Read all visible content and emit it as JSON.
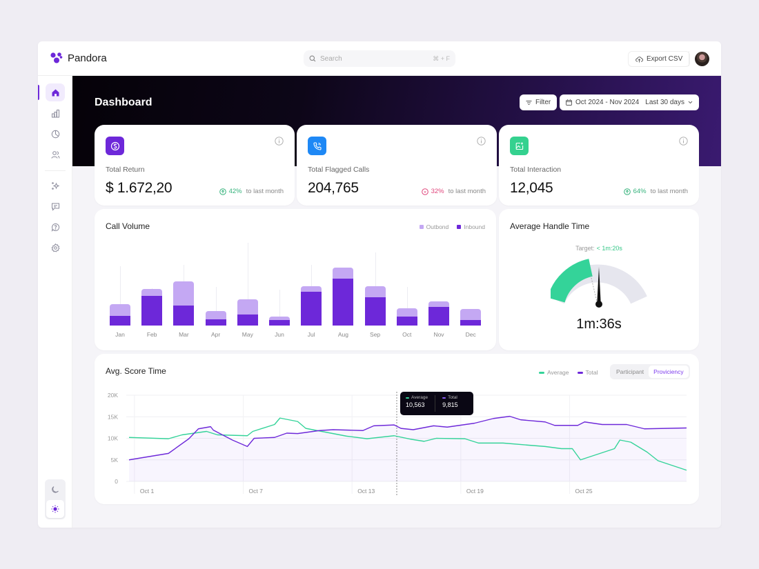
{
  "app": {
    "name": "Pandora"
  },
  "topbar": {
    "search_placeholder": "Search",
    "search_shortcut": "⌘ + F",
    "export_label": "Export CSV"
  },
  "sidebar": {
    "items": [
      {
        "id": "home",
        "icon": "home-icon",
        "active": true
      },
      {
        "id": "analytics",
        "icon": "bar-chart-icon"
      },
      {
        "id": "reports",
        "icon": "pie-chart-icon"
      },
      {
        "id": "users",
        "icon": "users-icon"
      },
      {
        "id": "ai",
        "icon": "sparkles-icon"
      },
      {
        "id": "messages",
        "icon": "message-icon"
      },
      {
        "id": "help",
        "icon": "help-chat-icon"
      },
      {
        "id": "settings",
        "icon": "gear-icon"
      }
    ],
    "theme": {
      "dark_icon": "moon-icon",
      "light_icon": "sun-icon",
      "selected": "light"
    }
  },
  "header": {
    "title": "Dashboard",
    "filter_label": "Filter",
    "date_range": "Oct 2024 - Nov 2024",
    "period": "Last 30 days"
  },
  "stats": [
    {
      "label": "Total Return",
      "value": "$ 1.672,20",
      "change": "42%",
      "direction": "up",
      "suffix": "to last month",
      "icon": "dollar-icon",
      "icon_color": "#6d28d9",
      "change_color": "#34b27b"
    },
    {
      "label": "Total Flagged Calls",
      "value": "204,765",
      "change": "32%",
      "direction": "down",
      "suffix": "to last month",
      "icon": "phone-icon",
      "icon_color": "#1e88f5",
      "change_color": "#e0457b"
    },
    {
      "label": "Total Interaction",
      "value": "12,045",
      "change": "64%",
      "direction": "up",
      "suffix": "to last month",
      "icon": "image-sparkle-icon",
      "icon_color": "#34d18f",
      "change_color": "#34b27b"
    }
  ],
  "call_volume": {
    "title": "Call Volume",
    "legend": [
      {
        "name": "Outbond",
        "color": "#c4a8f3"
      },
      {
        "name": "Inbound",
        "color": "#6d28d9"
      }
    ]
  },
  "handle_time": {
    "title": "Average Handle Time",
    "target_label": "Target:",
    "target_value": "< 1m:20s",
    "value": "1m:36s"
  },
  "score_time": {
    "title": "Avg. Score Time",
    "legend": [
      {
        "name": "Average",
        "color": "#34d399"
      },
      {
        "name": "Total",
        "color": "#6d28d9"
      }
    ],
    "toggle": [
      {
        "label": "Participant",
        "selected": false
      },
      {
        "label": "Proviciency",
        "selected": true
      }
    ],
    "tooltip": {
      "average_label": "Average",
      "average_value": "10,563",
      "total_label": "Total",
      "total_value": "9,815"
    }
  },
  "chart_data": [
    {
      "type": "bar",
      "title": "Call Volume",
      "stacked": true,
      "categories": [
        "Jan",
        "Feb",
        "Mar",
        "Apr",
        "May",
        "Jun",
        "Jul",
        "Aug",
        "Sep",
        "Oct",
        "Nov",
        "Dec"
      ],
      "series": [
        {
          "name": "Inbound",
          "values": [
            14,
            43,
            29,
            9,
            16,
            8,
            49,
            68,
            41,
            13,
            27,
            8
          ]
        },
        {
          "name": "Outbond",
          "values": [
            17,
            10,
            35,
            12,
            22,
            5,
            8,
            16,
            16,
            12,
            8,
            16
          ]
        }
      ],
      "whiskers": [
        86,
        54,
        88,
        56,
        120,
        52,
        88,
        0,
        106,
        56,
        0,
        0
      ],
      "xlabel": "",
      "ylabel": "",
      "grid": false,
      "legend_position": "top-right"
    },
    {
      "type": "gauge",
      "title": "Average Handle Time",
      "value": "1m:36s",
      "target": "< 1m:20s",
      "fill_fraction": 0.42
    },
    {
      "type": "line",
      "title": "Avg. Score Time",
      "x_ticks": [
        "Oct 1",
        "Oct 7",
        "Oct 13",
        "Oct 19",
        "Oct 25"
      ],
      "y_ticks": [
        "0",
        "5K",
        "10K",
        "15K",
        "20K"
      ],
      "ylim": [
        0,
        20000
      ],
      "grid": true,
      "legend_position": "top-right",
      "series": [
        {
          "name": "Average",
          "points": [
            [
              0,
              10200
            ],
            [
              2.9,
              9900
            ],
            [
              3.9,
              10800
            ],
            [
              5.7,
              11600
            ],
            [
              6.5,
              10800
            ],
            [
              8.7,
              10600
            ],
            [
              9.1,
              11600
            ],
            [
              10.7,
              13200
            ],
            [
              11.1,
              14700
            ],
            [
              12.4,
              13900
            ],
            [
              13.0,
              12300
            ],
            [
              14.0,
              11700
            ],
            [
              16.0,
              10500
            ],
            [
              17.5,
              9900
            ],
            [
              19.5,
              10600
            ],
            [
              20.7,
              9800
            ],
            [
              21.7,
              9300
            ],
            [
              22.6,
              10000
            ],
            [
              24.7,
              9900
            ],
            [
              25.7,
              8900
            ],
            [
              27.5,
              8900
            ],
            [
              29.4,
              8400
            ],
            [
              30.6,
              8100
            ],
            [
              31.8,
              7600
            ],
            [
              32.6,
              7600
            ],
            [
              33.2,
              5000
            ],
            [
              35.7,
              7600
            ],
            [
              36.1,
              9600
            ],
            [
              36.9,
              9100
            ],
            [
              38.1,
              6800
            ],
            [
              38.9,
              4800
            ],
            [
              41.0,
              2600
            ]
          ],
          "display_sample": {
            "x": "Oct 15",
            "value": 10563
          }
        },
        {
          "name": "Total",
          "points": [
            [
              0,
              5000
            ],
            [
              2.9,
              6500
            ],
            [
              4.4,
              9900
            ],
            [
              5.1,
              12200
            ],
            [
              6.0,
              12700
            ],
            [
              6.2,
              11900
            ],
            [
              7.6,
              9600
            ],
            [
              8.7,
              8100
            ],
            [
              9.2,
              10000
            ],
            [
              10.7,
              10200
            ],
            [
              11.6,
              11200
            ],
            [
              12.4,
              11100
            ],
            [
              14.0,
              11800
            ],
            [
              15.0,
              12000
            ],
            [
              17.2,
              11800
            ],
            [
              18.0,
              12900
            ],
            [
              19.5,
              13100
            ],
            [
              20.0,
              12300
            ],
            [
              20.9,
              12000
            ],
            [
              22.4,
              12900
            ],
            [
              23.4,
              12600
            ],
            [
              25.4,
              13500
            ],
            [
              26.8,
              14600
            ],
            [
              28.0,
              15100
            ],
            [
              28.8,
              14300
            ],
            [
              30.6,
              13800
            ],
            [
              31.3,
              13000
            ],
            [
              33.0,
              13000
            ],
            [
              33.5,
              13800
            ],
            [
              34.8,
              13200
            ],
            [
              36.6,
              13200
            ],
            [
              37.9,
              12200
            ],
            [
              41.0,
              12400
            ]
          ],
          "display_sample": {
            "x": "Oct 15",
            "value": 9815
          }
        }
      ]
    }
  ]
}
